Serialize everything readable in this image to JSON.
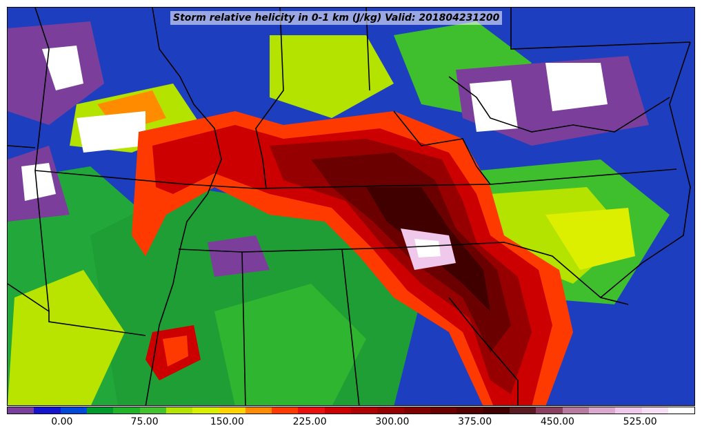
{
  "title": "Storm relative helicity in 0-1 km (J/kg) Valid: 201804231200",
  "colorbar": {
    "tick_labels": [
      "0.00",
      "75.00",
      "150.00",
      "225.00",
      "300.00",
      "375.00",
      "450.00",
      "525.00"
    ],
    "tick_values": [
      0,
      75,
      150,
      225,
      300,
      375,
      450,
      525
    ],
    "min": -50,
    "max": 575,
    "colors": [
      "#7b3f9b",
      "#1313d0",
      "#0048d8",
      "#009a2c",
      "#1fb32a",
      "#43c12e",
      "#b4e300",
      "#d8f000",
      "#ffd400",
      "#ff8c00",
      "#ff3a00",
      "#e81010",
      "#cc0000",
      "#b00000",
      "#960000",
      "#800000",
      "#6a0000",
      "#550000",
      "#410000",
      "#5a1a22",
      "#8a4060",
      "#b87aa0",
      "#dca8d0",
      "#f0c8ec",
      "#f7e0f6",
      "#ffffff"
    ]
  }
}
